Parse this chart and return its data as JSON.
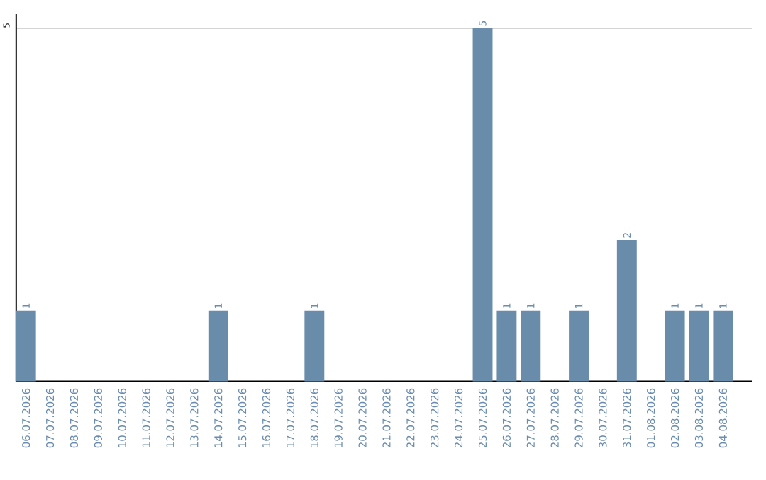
{
  "chart_data": {
    "type": "bar",
    "categories": [
      "06.07.2026",
      "07.07.2026",
      "08.07.2026",
      "09.07.2026",
      "10.07.2026",
      "11.07.2026",
      "12.07.2026",
      "13.07.2026",
      "14.07.2026",
      "15.07.2026",
      "16.07.2026",
      "17.07.2026",
      "18.07.2026",
      "19.07.2026",
      "20.07.2026",
      "21.07.2026",
      "22.07.2026",
      "23.07.2026",
      "24.07.2026",
      "25.07.2026",
      "26.07.2026",
      "27.07.2026",
      "28.07.2026",
      "29.07.2026",
      "30.07.2026",
      "31.07.2026",
      "01.08.2026",
      "02.08.2026",
      "03.08.2026",
      "04.08.2026"
    ],
    "values": [
      1,
      0,
      0,
      0,
      0,
      0,
      0,
      0,
      1,
      0,
      0,
      0,
      1,
      0,
      0,
      0,
      0,
      0,
      0,
      5,
      1,
      1,
      0,
      1,
      0,
      2,
      0,
      1,
      1,
      1
    ],
    "value_labels": [
      "1",
      null,
      null,
      null,
      null,
      null,
      null,
      null,
      "1",
      null,
      null,
      null,
      "1",
      null,
      null,
      null,
      null,
      null,
      null,
      "5",
      "1",
      "1",
      null,
      "1",
      null,
      "2",
      null,
      "1",
      "1",
      "1"
    ],
    "color": "#6a8cab",
    "ylim": [
      0,
      5.2
    ],
    "yticks": [
      5
    ],
    "grid": "y"
  }
}
